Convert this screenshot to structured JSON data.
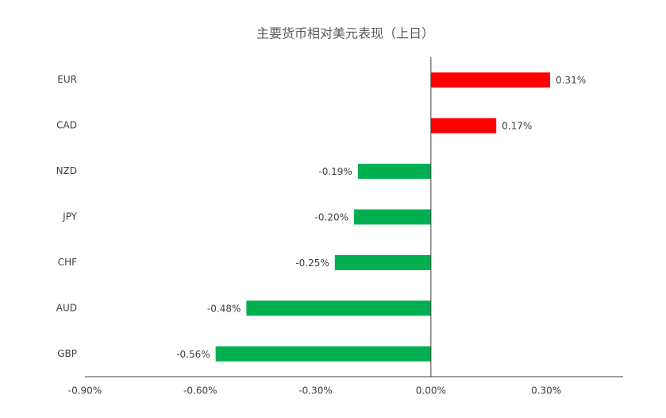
{
  "chart_data": {
    "type": "hbar",
    "title": "主要货币相对美元表现（上日）",
    "categories": [
      "EUR",
      "CAD",
      "NZD",
      "JPY",
      "CHF",
      "AUD",
      "GBP"
    ],
    "values": [
      0.31,
      0.17,
      -0.19,
      -0.2,
      -0.25,
      -0.48,
      -0.56
    ],
    "value_labels": [
      "0.31%",
      "0.17%",
      "-0.19%",
      "-0.20%",
      "-0.25%",
      "-0.48%",
      "-0.56%"
    ],
    "colors": [
      "#ff0000",
      "#ff0000",
      "#00b050",
      "#00b050",
      "#00b050",
      "#00b050",
      "#00b050"
    ],
    "xlim": [
      -0.9,
      0.5
    ],
    "xticks": [
      {
        "value": -0.9,
        "label": "-0.90%"
      },
      {
        "value": -0.6,
        "label": "-0.60%"
      },
      {
        "value": -0.3,
        "label": "-0.30%"
      },
      {
        "value": 0,
        "label": "0.00%"
      },
      {
        "value": 0.3,
        "label": "0.30%"
      }
    ],
    "grid": false
  }
}
